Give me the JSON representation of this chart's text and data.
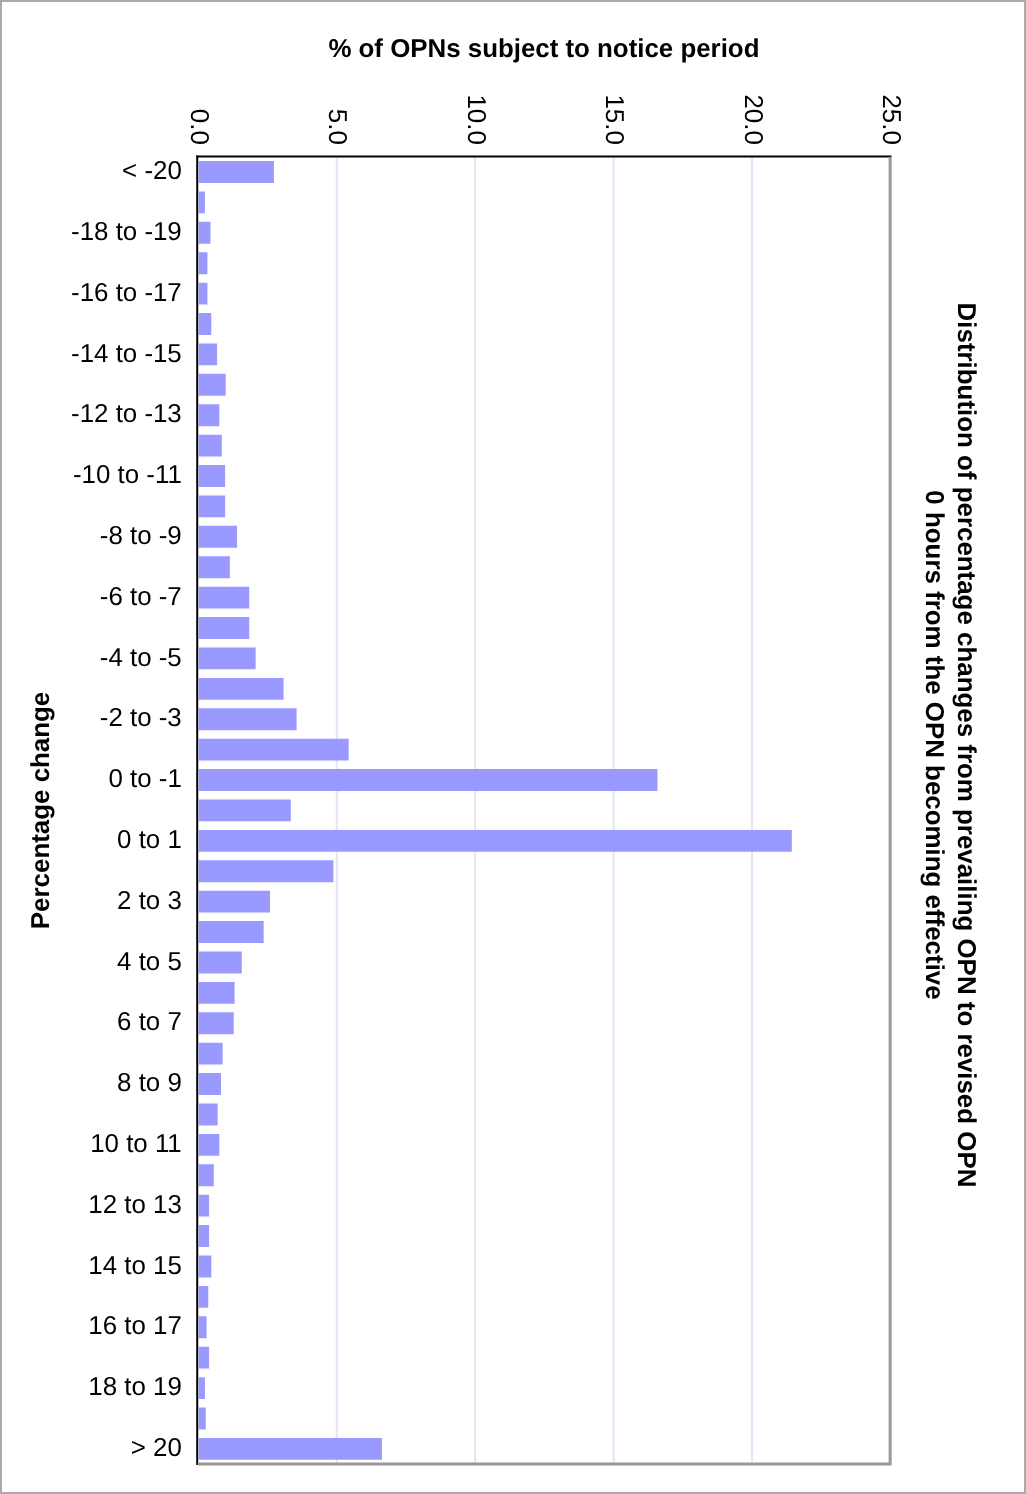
{
  "chart_data": {
    "type": "bar",
    "orientation": "horizontal",
    "title": [
      "Distribution of percentage changes from prevailing OPN to revised OPN",
      "0 hours from the OPN becoming effective"
    ],
    "xlabel": "% of OPNs subject to notice period",
    "ylabel": "Percentage change",
    "categories": [
      "< -20",
      null,
      "-18 to -19",
      null,
      "-16 to -17",
      null,
      "-14 to -15",
      null,
      "-12 to -13",
      null,
      "-10 to -11",
      null,
      "-8 to -9",
      null,
      "-6 to -7",
      null,
      "-4 to -5",
      null,
      "-2 to -3",
      null,
      "0 to -1",
      null,
      "0 to 1",
      null,
      "2 to 3",
      null,
      "4 to 5",
      null,
      "6 to 7",
      null,
      "8 to 9",
      null,
      "10 to 11",
      null,
      "12 to 13",
      null,
      "14 to 15",
      null,
      "16 to 17",
      null,
      "18 to 19",
      null,
      "> 20"
    ],
    "values": [
      2.75,
      0.26,
      0.46,
      0.35,
      0.35,
      0.49,
      0.7,
      1.01,
      0.78,
      0.87,
      0.99,
      0.99,
      1.42,
      1.16,
      1.86,
      1.86,
      2.09,
      3.1,
      3.57,
      5.45,
      16.6,
      3.36,
      21.45,
      4.9,
      2.61,
      2.38,
      1.59,
      1.33,
      1.3,
      0.9,
      0.84,
      0.72,
      0.78,
      0.58,
      0.41,
      0.41,
      0.49,
      0.38,
      0.32,
      0.41,
      0.26,
      0.29,
      6.65
    ],
    "color": "#9999ff",
    "xlim": [
      0,
      25
    ],
    "xticks": [
      {
        "value": 0,
        "label": "0.0"
      },
      {
        "value": 5,
        "label": "5.0"
      },
      {
        "value": 10,
        "label": "10.0"
      },
      {
        "value": 15,
        "label": "15.0"
      },
      {
        "value": 20,
        "label": "20.0"
      },
      {
        "value": 25,
        "label": "25.0"
      }
    ],
    "grid": "x",
    "legend": false
  }
}
